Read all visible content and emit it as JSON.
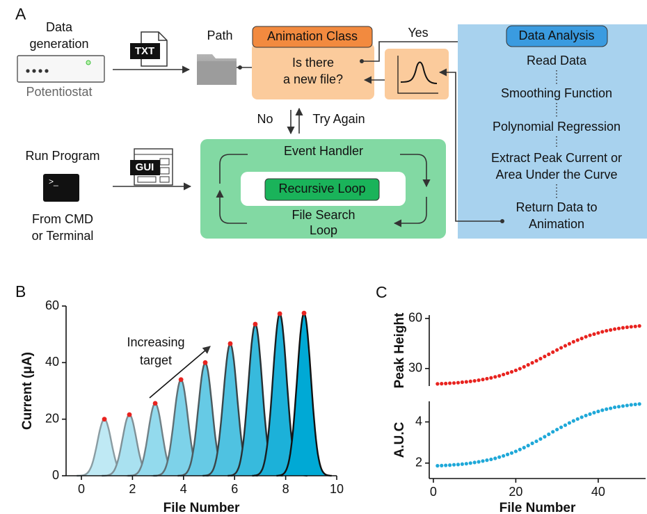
{
  "panel_labels": [
    "A",
    "B",
    "C"
  ],
  "diagram": {
    "data_generation": [
      "Data",
      "generation"
    ],
    "potentiostat": "Potentiostat",
    "txt_icon": "TXT",
    "path": "Path",
    "animation_class": "Animation Class",
    "new_file_question": [
      "Is there",
      "a new file?"
    ],
    "yes": "Yes",
    "no": "No",
    "try_again": "Try Again",
    "data_analysis": "Data Analysis",
    "analysis_steps": [
      [
        "Read Data"
      ],
      [
        "Smoothing Function"
      ],
      [
        "Polynomial Regression"
      ],
      [
        "Extract Peak Current or",
        "Area Under the Curve"
      ],
      [
        "Return Data to",
        "Animation"
      ]
    ],
    "run_program": "Run Program",
    "terminal_prompt": ">_",
    "gui_icon": "GUI",
    "from_cmd": [
      "From CMD",
      "or Terminal"
    ],
    "event_handler": "Event Handler",
    "recursive_loop": "Recursive Loop",
    "file_search_loop": [
      "File Search",
      "Loop"
    ]
  },
  "chart_data": [
    {
      "type": "peaks",
      "xlabel": "File Number",
      "ylabel": "Current (μA)",
      "annotation": [
        "Increasing",
        "target"
      ],
      "x": [
        0.9,
        1.88,
        2.89,
        3.9,
        4.85,
        5.83,
        6.81,
        7.77,
        8.72
      ],
      "values": [
        20,
        21.6,
        25.6,
        34,
        40,
        46.7,
        53.6,
        57.3,
        57.5
      ],
      "colors": [
        "#bfe9f4",
        "#a9e1f0",
        "#93daed",
        "#7dd2e9",
        "#66cae5",
        "#4fc2e1",
        "#37badd",
        "#1cb1d9",
        "#00a9d5"
      ],
      "edge_colors": [
        "#8a9ca2",
        "#7f9096",
        "#708187",
        "#5f6f74",
        "#4c5a5e",
        "#3a4548",
        "#283033",
        "#1a1f21",
        "#111111"
      ],
      "peak_marker_color": "#e8231f",
      "xlim": [
        -0.6,
        10
      ],
      "ylim": [
        0,
        60
      ],
      "xticks": [
        0,
        2,
        4,
        6,
        8,
        10
      ],
      "yticks": [
        0,
        20,
        40,
        60
      ]
    },
    {
      "type": "scatter",
      "ylabel": "Peak Height",
      "color": "#e8231f",
      "x": [
        1,
        2,
        3,
        4,
        5,
        6,
        7,
        8,
        9,
        10,
        11,
        12,
        13,
        14,
        15,
        16,
        17,
        18,
        19,
        20,
        21,
        22,
        23,
        24,
        25,
        26,
        27,
        28,
        29,
        30,
        31,
        32,
        33,
        34,
        35,
        36,
        37,
        38,
        39,
        40,
        41,
        42,
        43,
        44,
        45,
        46,
        47,
        48,
        49,
        50
      ],
      "values": [
        20.8,
        20.9,
        21.0,
        21.2,
        21.3,
        21.5,
        21.8,
        22.0,
        22.3,
        22.6,
        23.0,
        23.4,
        23.9,
        24.4,
        25.0,
        25.6,
        26.4,
        27.2,
        28.0,
        28.9,
        29.9,
        31.0,
        32.2,
        33.4,
        34.6,
        35.9,
        37.2,
        38.5,
        39.8,
        41.1,
        42.4,
        43.6,
        44.8,
        46.0,
        47.0,
        48.0,
        49.0,
        49.9,
        50.6,
        51.3,
        52.0,
        52.6,
        53.1,
        53.6,
        54.0,
        54.4,
        54.7,
        55.0,
        55.2,
        55.5
      ],
      "xlim": [
        -1,
        51.5
      ],
      "ylim": [
        19.5,
        62
      ],
      "yticks": [
        30,
        60
      ]
    },
    {
      "type": "scatter",
      "xlabel": "File Number",
      "ylabel": "A.U.C",
      "color": "#1fa8d8",
      "x": [
        1,
        2,
        3,
        4,
        5,
        6,
        7,
        8,
        9,
        10,
        11,
        12,
        13,
        14,
        15,
        16,
        17,
        18,
        19,
        20,
        21,
        22,
        23,
        24,
        25,
        26,
        27,
        28,
        29,
        30,
        31,
        32,
        33,
        34,
        35,
        36,
        37,
        38,
        39,
        40,
        41,
        42,
        43,
        44,
        45,
        46,
        47,
        48,
        49,
        50
      ],
      "values": [
        1.87,
        1.88,
        1.89,
        1.9,
        1.92,
        1.93,
        1.95,
        1.97,
        2.0,
        2.03,
        2.06,
        2.1,
        2.14,
        2.18,
        2.23,
        2.29,
        2.35,
        2.42,
        2.49,
        2.57,
        2.66,
        2.75,
        2.85,
        2.96,
        3.06,
        3.17,
        3.28,
        3.4,
        3.52,
        3.63,
        3.74,
        3.84,
        3.95,
        4.05,
        4.14,
        4.23,
        4.31,
        4.38,
        4.45,
        4.51,
        4.57,
        4.62,
        4.66,
        4.71,
        4.74,
        4.77,
        4.8,
        4.83,
        4.85,
        4.87
      ],
      "xlim": [
        -1,
        51.5
      ],
      "ylim": [
        1.25,
        5
      ],
      "xticks": [
        0,
        20,
        40
      ],
      "yticks": [
        2,
        4
      ]
    }
  ]
}
